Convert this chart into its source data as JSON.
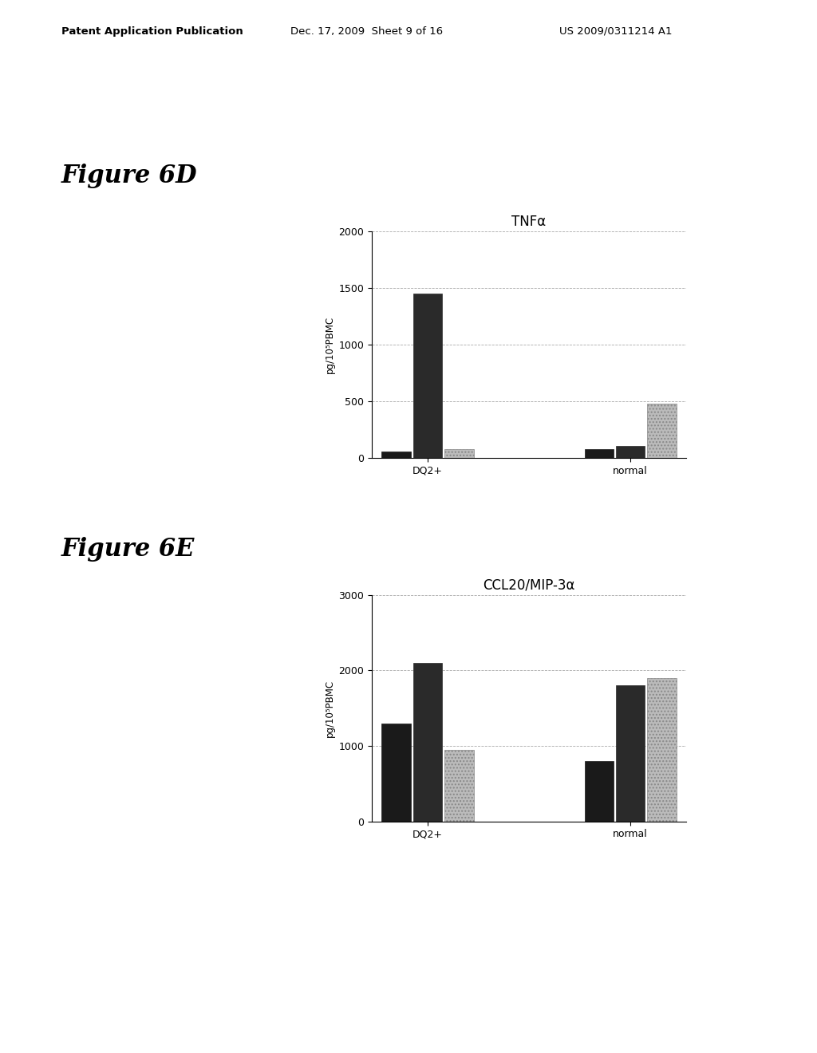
{
  "fig6d": {
    "title": "TNFα",
    "ylabel": "pg/10⁵PBMC",
    "ylim": [
      0,
      2000
    ],
    "yticks": [
      0,
      500,
      1000,
      1500,
      2000
    ],
    "group_labels": [
      "DQ2+",
      "normal"
    ],
    "bar_values": [
      [
        60,
        1450,
        80
      ],
      [
        80,
        110,
        480
      ]
    ],
    "bar_colors": [
      "#1a1a1a",
      "#2a2a2a",
      "#bbbbbb"
    ],
    "bar_hatches": [
      null,
      null,
      "...."
    ]
  },
  "fig6e": {
    "title": "CCL20/MIP-3α",
    "ylabel": "pg/10⁵PBMC",
    "ylim": [
      0,
      3000
    ],
    "yticks": [
      0,
      1000,
      2000,
      3000
    ],
    "group_labels": [
      "DQ2+",
      "normal"
    ],
    "bar_values": [
      [
        1300,
        2100,
        950
      ],
      [
        800,
        1800,
        1900
      ]
    ],
    "bar_colors": [
      "#1a1a1a",
      "#2a2a2a",
      "#bbbbbb"
    ],
    "bar_hatches": [
      null,
      null,
      "...."
    ]
  },
  "figure_label_6d": "Figure 6D",
  "figure_label_6e": "Figure 6E",
  "header_left": "Patent Application Publication",
  "header_middle": "Dec. 17, 2009  Sheet 9 of 16",
  "header_right": "US 2009/0311214 A1",
  "bg_color": "#ffffff",
  "text_color": "#000000",
  "grid_color": "#aaaaaa",
  "xlabel_combined": "DQ2+  normal"
}
